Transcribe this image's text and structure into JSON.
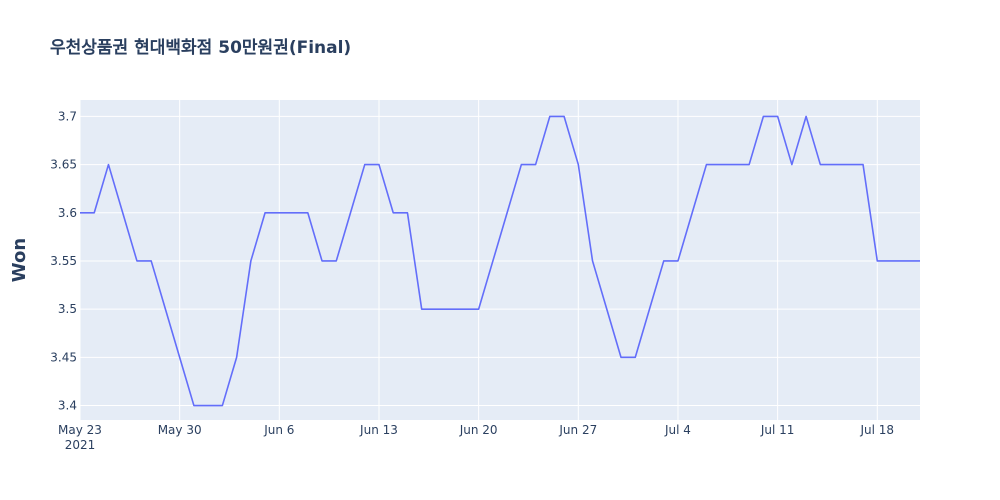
{
  "chart_data": {
    "type": "line",
    "title": "우천상품권 현대백화점 50만원권(Final)",
    "xlabel": "",
    "ylabel": "Won",
    "x_ticks": [
      {
        "date": "2021-05-23",
        "label": "May 23",
        "sublabel": "2021"
      },
      {
        "date": "2021-05-30",
        "label": "May 30"
      },
      {
        "date": "2021-06-06",
        "label": "Jun 6"
      },
      {
        "date": "2021-06-13",
        "label": "Jun 13"
      },
      {
        "date": "2021-06-20",
        "label": "Jun 20"
      },
      {
        "date": "2021-06-27",
        "label": "Jun 27"
      },
      {
        "date": "2021-07-04",
        "label": "Jul 4"
      },
      {
        "date": "2021-07-11",
        "label": "Jul 11"
      },
      {
        "date": "2021-07-18",
        "label": "Jul 18"
      }
    ],
    "y_ticks": [
      3.4,
      3.45,
      3.5,
      3.55,
      3.6,
      3.65,
      3.7
    ],
    "y_tick_labels": [
      "3.4",
      "3.45",
      "3.5",
      "3.55",
      "3.6",
      "3.65",
      "3.7"
    ],
    "xlim": [
      "2021-05-23",
      "2021-07-21"
    ],
    "ylim": [
      3.385,
      3.717
    ],
    "grid": true,
    "colors": {
      "line": "#636efa",
      "plot_bg": "#e5ecf6",
      "grid": "#ffffff",
      "text": "#2a3f5f"
    },
    "series": [
      {
        "x": [
          "2021-05-23",
          "2021-05-24",
          "2021-05-25",
          "2021-05-26",
          "2021-05-27",
          "2021-05-28",
          "2021-05-29",
          "2021-05-30",
          "2021-05-31",
          "2021-06-01",
          "2021-06-02",
          "2021-06-03",
          "2021-06-04",
          "2021-06-05",
          "2021-06-06",
          "2021-06-07",
          "2021-06-08",
          "2021-06-09",
          "2021-06-10",
          "2021-06-11",
          "2021-06-12",
          "2021-06-13",
          "2021-06-14",
          "2021-06-15",
          "2021-06-16",
          "2021-06-17",
          "2021-06-18",
          "2021-06-19",
          "2021-06-20",
          "2021-06-21",
          "2021-06-22",
          "2021-06-23",
          "2021-06-24",
          "2021-06-25",
          "2021-06-26",
          "2021-06-27",
          "2021-06-28",
          "2021-06-29",
          "2021-06-30",
          "2021-07-01",
          "2021-07-02",
          "2021-07-03",
          "2021-07-04",
          "2021-07-05",
          "2021-07-06",
          "2021-07-07",
          "2021-07-08",
          "2021-07-09",
          "2021-07-10",
          "2021-07-11",
          "2021-07-12",
          "2021-07-13",
          "2021-07-14",
          "2021-07-15",
          "2021-07-16",
          "2021-07-17",
          "2021-07-18",
          "2021-07-19",
          "2021-07-20",
          "2021-07-21"
        ],
        "values": [
          3.6,
          3.6,
          3.65,
          3.6,
          3.55,
          3.55,
          3.5,
          3.45,
          3.4,
          3.4,
          3.4,
          3.45,
          3.55,
          3.6,
          3.6,
          3.6,
          3.6,
          3.55,
          3.55,
          3.6,
          3.65,
          3.65,
          3.6,
          3.6,
          3.5,
          3.5,
          3.5,
          3.5,
          3.5,
          3.55,
          3.6,
          3.65,
          3.65,
          3.7,
          3.7,
          3.65,
          3.55,
          3.5,
          3.45,
          3.45,
          3.5,
          3.55,
          3.55,
          3.6,
          3.65,
          3.65,
          3.65,
          3.65,
          3.7,
          3.7,
          3.65,
          3.7,
          3.65,
          3.65,
          3.65,
          3.65,
          3.55,
          3.55,
          3.55,
          3.55
        ]
      }
    ]
  }
}
